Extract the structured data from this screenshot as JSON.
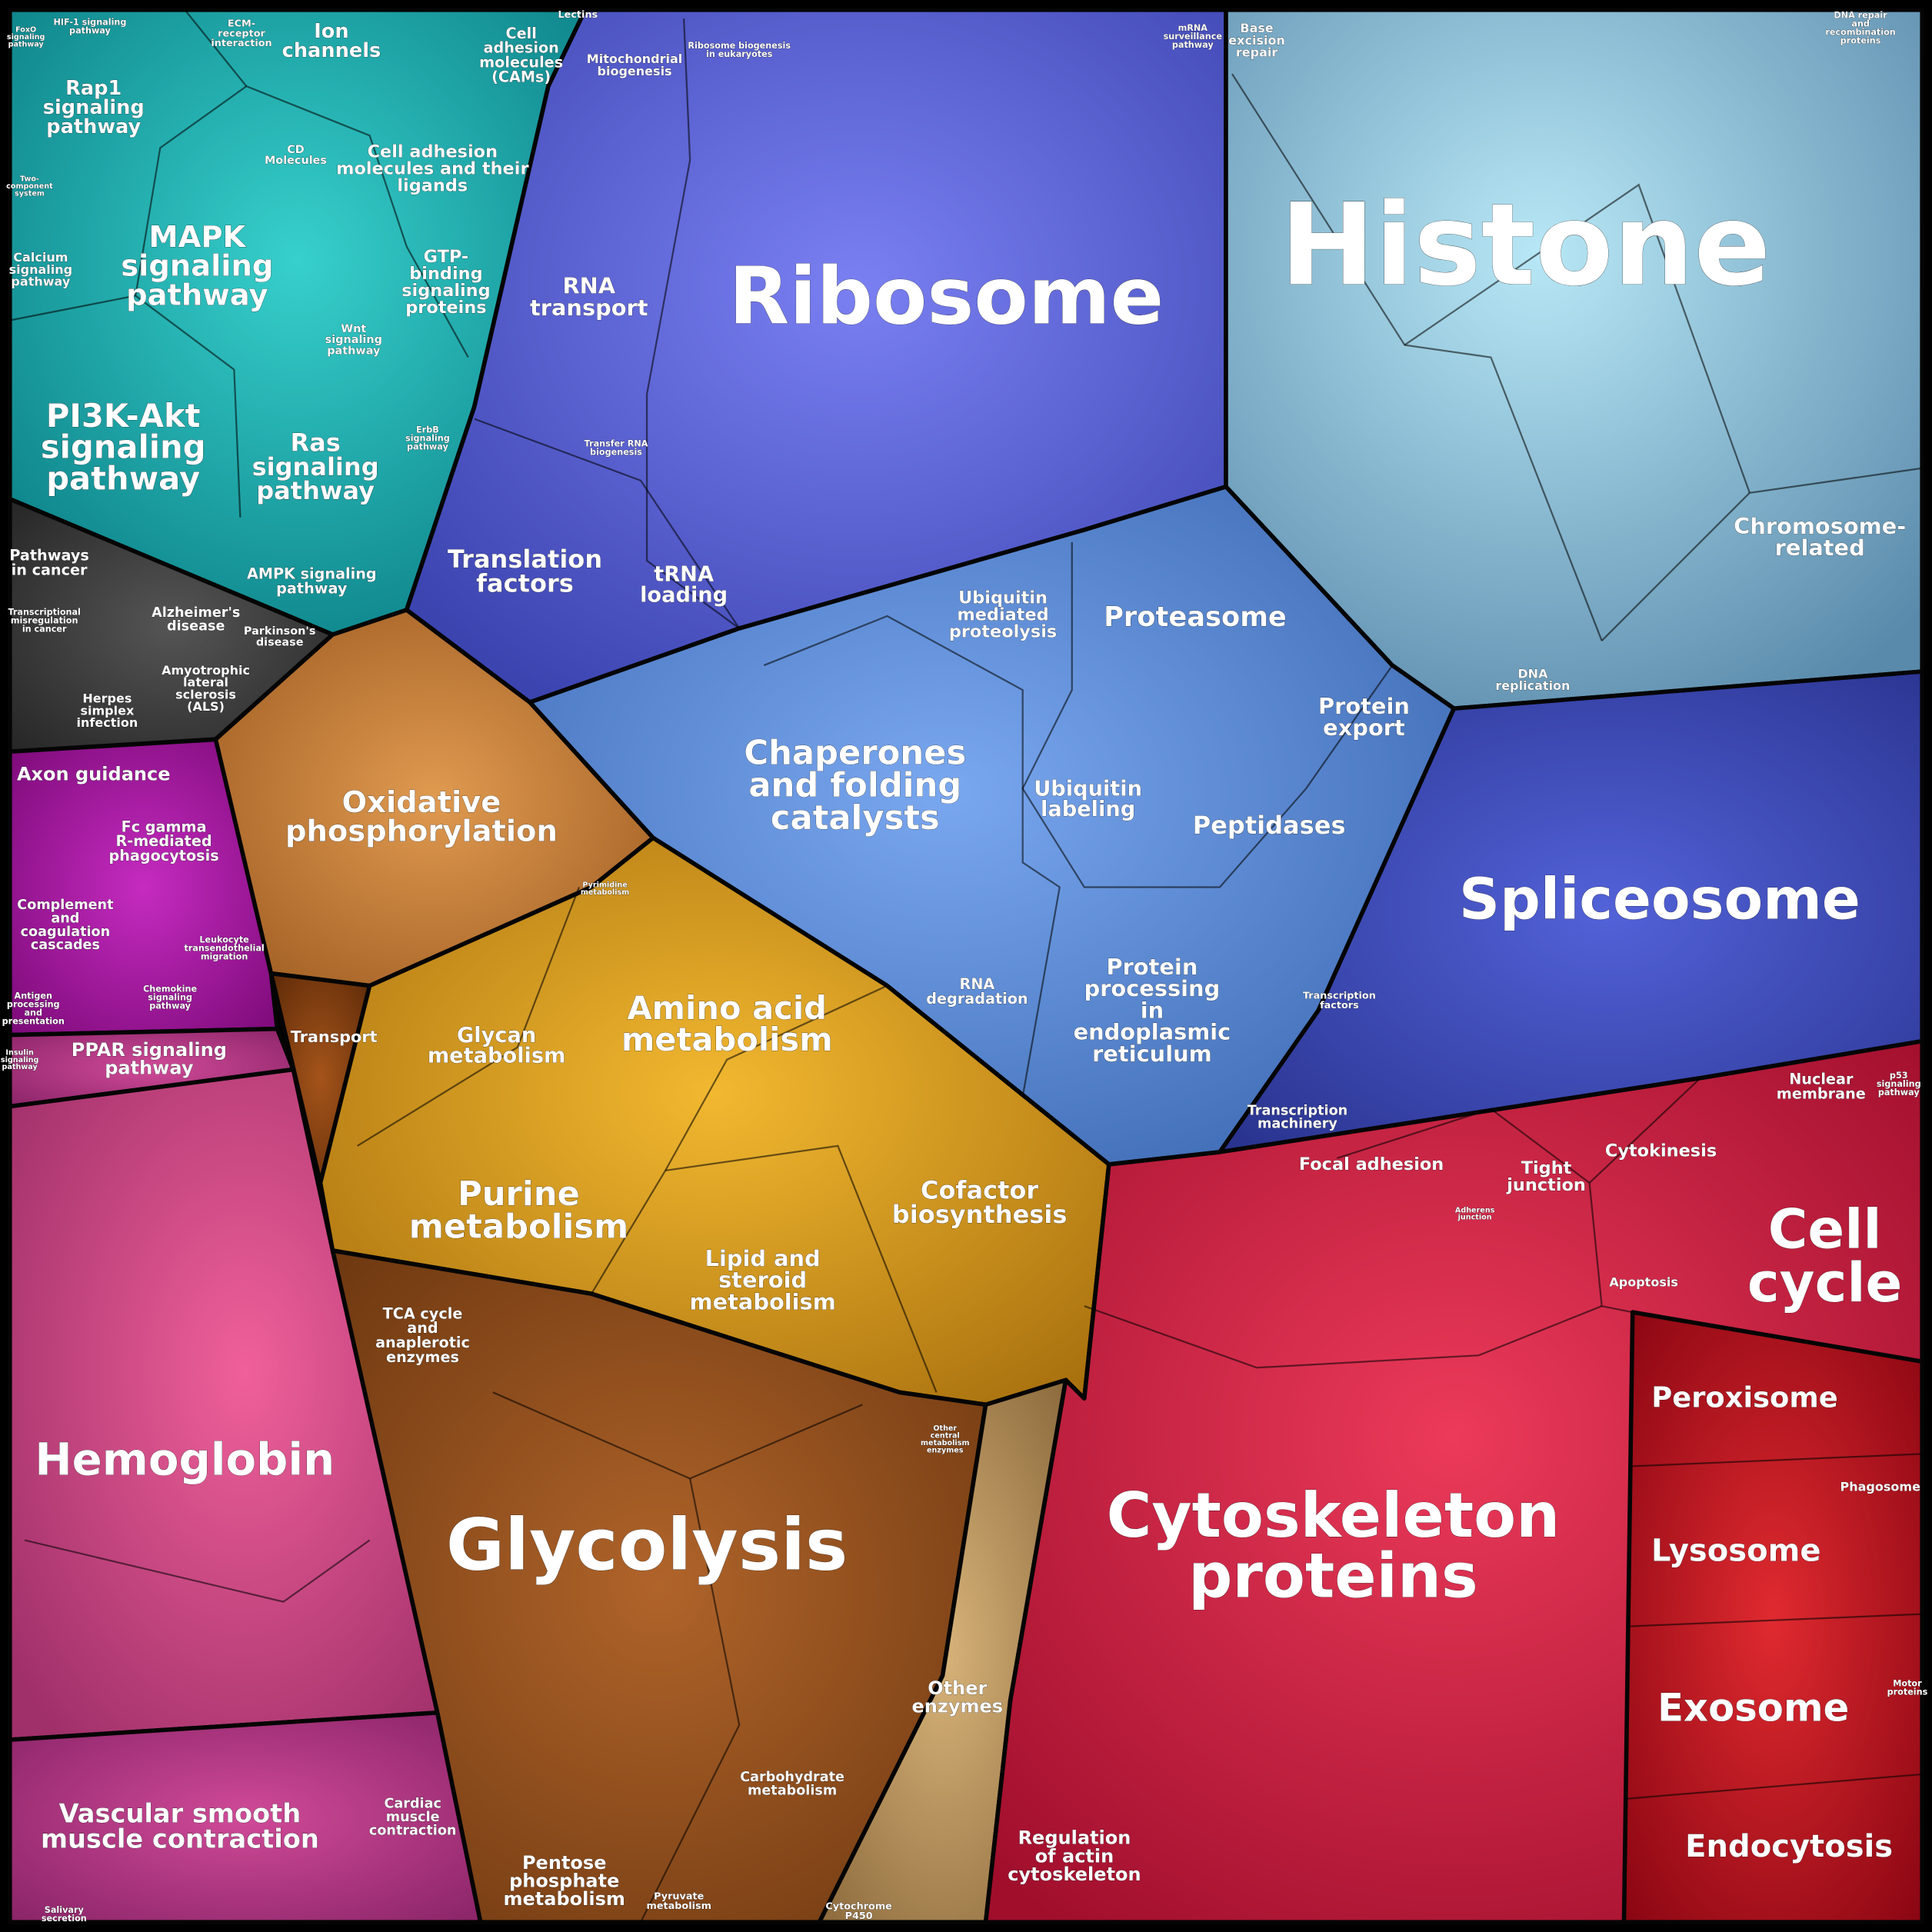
{
  "labels": [
    [
      "Histone"
    ],
    [
      "Ribosome"
    ],
    [
      "Spliceosome"
    ],
    [
      "Glycolysis"
    ],
    [
      "Cytoskeleton",
      "proteins"
    ],
    [
      "Hemoglobin"
    ],
    [
      "Cell",
      "cycle"
    ],
    [
      "Peroxisome"
    ],
    [
      "Lysosome"
    ],
    [
      "Exosome"
    ],
    [
      "Endocytosis"
    ],
    [
      "Proteasome"
    ],
    [
      "Chaperones",
      "and folding",
      "catalysts"
    ],
    [
      "Ubiquitin",
      "labeling"
    ],
    [
      "Peptidases"
    ],
    [
      "Protein",
      "export"
    ],
    [
      "Protein",
      "processing",
      "in",
      "endoplasmic",
      "reticulum"
    ],
    [
      "RNA",
      "degradation"
    ],
    [
      "Ubiquitin",
      "mediated",
      "proteolysis"
    ],
    [
      "Chromosome-",
      "related"
    ],
    [
      "DNA",
      "replication"
    ],
    [
      "Base",
      "excision",
      "repair"
    ],
    [
      "DNA repair",
      "and",
      "recombination",
      "proteins"
    ],
    [
      "mRNA",
      "surveillance",
      "pathway"
    ],
    [
      "Mitochondrial",
      "biogenesis"
    ],
    [
      "Ribosome biogenesis",
      "in eukaryotes"
    ],
    [
      "RNA",
      "transport"
    ],
    [
      "Translation",
      "factors"
    ],
    [
      "tRNA",
      "loading"
    ],
    [
      "Transfer RNA",
      "biogenesis"
    ],
    [
      "Transcription",
      "factors"
    ],
    [
      "Transcription",
      "machinery"
    ],
    [
      "Oxidative",
      "phosphorylation"
    ],
    [
      "Amino acid",
      "metabolism"
    ],
    [
      "Glycan",
      "metabolism"
    ],
    [
      "Purine",
      "metabolism"
    ],
    [
      "Lipid and",
      "steroid",
      "metabolism"
    ],
    [
      "Cofactor",
      "biosynthesis"
    ],
    [
      "Transport"
    ],
    [
      "TCA cycle",
      "and",
      "anaplerotic",
      "enzymes"
    ],
    [
      "Other",
      "enzymes"
    ],
    [
      "Carbohydrate",
      "metabolism"
    ],
    [
      "Pentose",
      "phosphate",
      "metabolism"
    ],
    [
      "Pyruvate",
      "metabolism"
    ],
    [
      "Cytochrome",
      "P450"
    ],
    [
      "Other",
      "central",
      "metabolism",
      "enzymes"
    ],
    [
      "Pyrimidine",
      "metabolism"
    ],
    [
      "Focal adhesion"
    ],
    [
      "Tight",
      "junction"
    ],
    [
      "Cytokinesis"
    ],
    [
      "Nuclear",
      "membrane"
    ],
    [
      "p53",
      "signaling",
      "pathway"
    ],
    [
      "Adherens",
      "junction"
    ],
    [
      "Apoptosis"
    ],
    [
      "Phagosome"
    ],
    [
      "Regulation",
      "of actin",
      "cytoskeleton"
    ],
    [
      "Motor",
      "proteins"
    ],
    [
      "Ion",
      "channels"
    ],
    [
      "Cell",
      "adhesion",
      "molecules",
      "(CAMs)"
    ],
    [
      "Rap1",
      "signaling",
      "pathway"
    ],
    [
      "MAPK",
      "signaling",
      "pathway"
    ],
    [
      "PI3K-Akt",
      "signaling",
      "pathway"
    ],
    [
      "Ras",
      "signaling",
      "pathway"
    ],
    [
      "Cell adhesion",
      "molecules and their",
      "ligands"
    ],
    [
      "GTP-",
      "binding",
      "signaling",
      "proteins"
    ],
    [
      "Calcium",
      "signaling",
      "pathway"
    ],
    [
      "CD",
      "Molecules"
    ],
    [
      "AMPK signaling",
      "pathway"
    ],
    [
      "Wnt",
      "signaling",
      "pathway"
    ],
    [
      "Two-",
      "component",
      "system"
    ],
    [
      "HIF-1 signaling",
      "pathway"
    ],
    [
      "ECM-",
      "receptor",
      "interaction"
    ],
    [
      "Lectins"
    ],
    [
      "FoxO",
      "signaling",
      "pathway"
    ],
    [
      "ErbB",
      "signaling",
      "pathway"
    ],
    [
      "Pathways",
      "in cancer"
    ],
    [
      "Alzheimer's",
      "disease"
    ],
    [
      "Parkinson's",
      "disease"
    ],
    [
      "Amyotrophic",
      "lateral",
      "sclerosis",
      "(ALS)"
    ],
    [
      "Herpes",
      "simplex",
      "infection"
    ],
    [
      "Transcriptional",
      "misregulation",
      "in cancer"
    ],
    [
      "Axon guidance"
    ],
    [
      "Fc gamma",
      "R-mediated",
      "phagocytosis"
    ],
    [
      "Complement",
      "and",
      "coagulation",
      "cascades"
    ],
    [
      "Leukocyte",
      "transendothelial",
      "migration"
    ],
    [
      "Antigen",
      "processing",
      "and",
      "presentation"
    ],
    [
      "Chemokine",
      "signaling",
      "pathway"
    ],
    [
      "PPAR signaling",
      "pathway"
    ],
    [
      "Vascular smooth",
      "muscle contraction"
    ],
    [
      "Cardiac",
      "muscle",
      "contraction"
    ],
    [
      "Salivary",
      "secretion"
    ],
    [
      "Insulin",
      "signaling",
      "pathway"
    ]
  ]
}
